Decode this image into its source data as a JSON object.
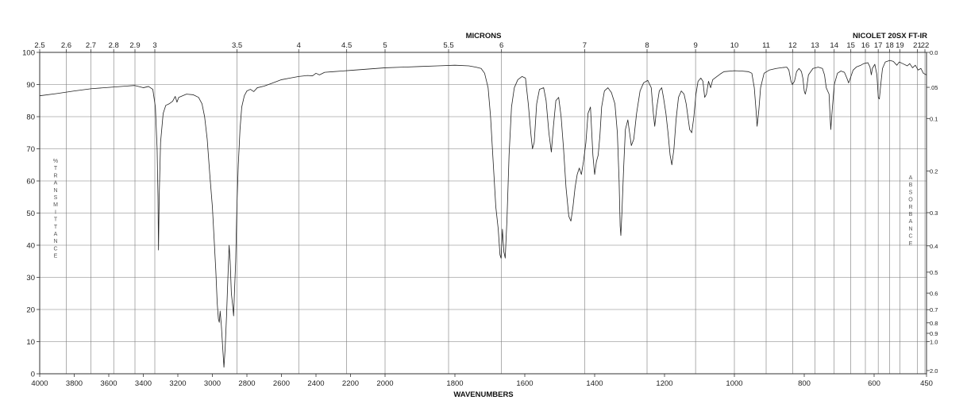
{
  "chart_data": {
    "type": "line",
    "instrument_label": "NICOLET 20SX FT-IR",
    "top_axis_title": "MICRONS",
    "bottom_axis_title": "WAVENUMBERS",
    "left_axis_vertical_label": "%TRANSMITTANCE",
    "right_axis_vertical_label": "ABSORBANCE",
    "xlim": [
      4000,
      450
    ],
    "ylim": [
      0,
      100
    ],
    "x_scale": "two linear segments: 4000-2000 cm-1 and 2000-450 cm-1 (expanded)",
    "grid": true,
    "bottom_ticks": [
      "4000",
      "3800",
      "3600",
      "3400",
      "3200",
      "3000",
      "2800",
      "2600",
      "2400",
      "2200",
      "2000",
      "1800",
      "1600",
      "1400",
      "1200",
      "1000",
      "800",
      "600",
      "450"
    ],
    "bottom_tick_values": [
      4000,
      3800,
      3600,
      3400,
      3200,
      3000,
      2800,
      2600,
      2400,
      2200,
      2000,
      1800,
      1600,
      1400,
      1200,
      1000,
      800,
      600,
      450
    ],
    "top_ticks": [
      "2.5",
      "2.6",
      "2.7",
      "2.8",
      "2.9",
      "3",
      "3.5",
      "4",
      "4.5",
      "5",
      "5.5",
      "6",
      "7",
      "8",
      "9",
      "10",
      "11",
      "12",
      "13",
      "14",
      "15",
      "16",
      "17",
      "18",
      "19",
      "21",
      "22"
    ],
    "top_tick_values": [
      2.5,
      2.6,
      2.7,
      2.8,
      2.9,
      3,
      3.5,
      4,
      4.5,
      5,
      5.5,
      6,
      7,
      8,
      9,
      10,
      11,
      12,
      13,
      14,
      15,
      16,
      17,
      18,
      19,
      21,
      22
    ],
    "left_ticks": [
      "0",
      "10",
      "20",
      "30",
      "40",
      "50",
      "60",
      "70",
      "80",
      "90",
      "100"
    ],
    "left_tick_values": [
      0,
      10,
      20,
      30,
      40,
      50,
      60,
      70,
      80,
      90,
      100
    ],
    "right_ticks": [
      "0.0",
      ".05",
      "0.1",
      "0.2",
      "0.3",
      "0.4",
      "0.5",
      "0.6",
      "0.7",
      "0.8",
      "0.9",
      "1.0",
      "2.0"
    ],
    "right_tick_values": [
      0,
      0.05,
      0.1,
      0.2,
      0.3,
      0.4,
      0.5,
      0.6,
      0.7,
      0.8,
      0.9,
      1.0,
      2.0
    ],
    "series": [
      {
        "points": [
          [
            4000,
            86.5
          ],
          [
            3900,
            87.2
          ],
          [
            3800,
            88.0
          ],
          [
            3700,
            88.7
          ],
          [
            3600,
            89.1
          ],
          [
            3500,
            89.5
          ],
          [
            3450,
            89.7
          ],
          [
            3420,
            89.3
          ],
          [
            3400,
            89.0
          ],
          [
            3370,
            89.4
          ],
          [
            3345,
            88.5
          ],
          [
            3330,
            83
          ],
          [
            3320,
            70
          ],
          [
            3315,
            55
          ],
          [
            3312,
            38.5
          ],
          [
            3308,
            55
          ],
          [
            3300,
            72
          ],
          [
            3285,
            81
          ],
          [
            3270,
            83.5
          ],
          [
            3250,
            84.0
          ],
          [
            3230,
            84.8
          ],
          [
            3215,
            86.3
          ],
          [
            3205,
            84.5
          ],
          [
            3195,
            86.0
          ],
          [
            3150,
            87.0
          ],
          [
            3110,
            86.8
          ],
          [
            3080,
            86.0
          ],
          [
            3060,
            84
          ],
          [
            3045,
            80
          ],
          [
            3030,
            73
          ],
          [
            3015,
            62
          ],
          [
            3000,
            52
          ],
          [
            2990,
            42
          ],
          [
            2980,
            32
          ],
          [
            2972,
            22
          ],
          [
            2965,
            17
          ],
          [
            2960,
            16
          ],
          [
            2955,
            19.5
          ],
          [
            2948,
            15
          ],
          [
            2940,
            8
          ],
          [
            2933,
            2
          ],
          [
            2926,
            8
          ],
          [
            2918,
            18
          ],
          [
            2910,
            30
          ],
          [
            2903,
            40
          ],
          [
            2897,
            35
          ],
          [
            2890,
            25
          ],
          [
            2882,
            21
          ],
          [
            2877,
            18
          ],
          [
            2873,
            24
          ],
          [
            2865,
            35
          ],
          [
            2858,
            52
          ],
          [
            2850,
            65
          ],
          [
            2840,
            76
          ],
          [
            2830,
            83
          ],
          [
            2815,
            86.5
          ],
          [
            2800,
            88
          ],
          [
            2780,
            88.5
          ],
          [
            2760,
            87.8
          ],
          [
            2740,
            89
          ],
          [
            2700,
            89.5
          ],
          [
            2650,
            90.5
          ],
          [
            2600,
            91.5
          ],
          [
            2550,
            92.0
          ],
          [
            2500,
            92.5
          ],
          [
            2450,
            92.8
          ],
          [
            2420,
            92.7
          ],
          [
            2400,
            93.5
          ],
          [
            2380,
            93.0
          ],
          [
            2350,
            93.8
          ],
          [
            2300,
            94.0
          ],
          [
            2250,
            94.2
          ],
          [
            2200,
            94.4
          ],
          [
            2100,
            94.8
          ],
          [
            2000,
            95.2
          ],
          [
            1950,
            95.4
          ],
          [
            1900,
            95.6
          ],
          [
            1850,
            95.8
          ],
          [
            1800,
            96.0
          ],
          [
            1760,
            95.8
          ],
          [
            1740,
            95.4
          ],
          [
            1725,
            95.0
          ],
          [
            1715,
            93.5
          ],
          [
            1705,
            89
          ],
          [
            1698,
            80
          ],
          [
            1690,
            65
          ],
          [
            1683,
            52
          ],
          [
            1676,
            45
          ],
          [
            1671,
            37
          ],
          [
            1668,
            36
          ],
          [
            1664,
            45
          ],
          [
            1660,
            38
          ],
          [
            1656,
            36
          ],
          [
            1651,
            48
          ],
          [
            1645,
            68
          ],
          [
            1638,
            83
          ],
          [
            1630,
            89
          ],
          [
            1620,
            91.5
          ],
          [
            1608,
            92.5
          ],
          [
            1598,
            92
          ],
          [
            1590,
            84
          ],
          [
            1582,
            74
          ],
          [
            1578,
            70
          ],
          [
            1573,
            72
          ],
          [
            1566,
            84
          ],
          [
            1558,
            88.5
          ],
          [
            1546,
            89
          ],
          [
            1539,
            85
          ],
          [
            1531,
            75
          ],
          [
            1524,
            69
          ],
          [
            1518,
            77
          ],
          [
            1511,
            85
          ],
          [
            1503,
            86
          ],
          [
            1496,
            80
          ],
          [
            1489,
            70
          ],
          [
            1482,
            58
          ],
          [
            1474,
            49
          ],
          [
            1468,
            47.5
          ],
          [
            1462,
            52
          ],
          [
            1456,
            58
          ],
          [
            1450,
            62
          ],
          [
            1444,
            64
          ],
          [
            1438,
            62
          ],
          [
            1432,
            66
          ],
          [
            1425,
            72
          ],
          [
            1419,
            81
          ],
          [
            1412,
            83
          ],
          [
            1405,
            68
          ],
          [
            1400,
            62
          ],
          [
            1395,
            66
          ],
          [
            1390,
            68
          ],
          [
            1385,
            74
          ],
          [
            1380,
            83
          ],
          [
            1372,
            88
          ],
          [
            1362,
            89
          ],
          [
            1352,
            87.5
          ],
          [
            1342,
            84
          ],
          [
            1335,
            75
          ],
          [
            1330,
            60
          ],
          [
            1327,
            46
          ],
          [
            1325,
            43
          ],
          [
            1322,
            50
          ],
          [
            1317,
            64
          ],
          [
            1312,
            76
          ],
          [
            1305,
            79
          ],
          [
            1300,
            75
          ],
          [
            1295,
            71
          ],
          [
            1288,
            73
          ],
          [
            1280,
            81
          ],
          [
            1270,
            88
          ],
          [
            1260,
            90.5
          ],
          [
            1248,
            91.3
          ],
          [
            1238,
            89
          ],
          [
            1232,
            81
          ],
          [
            1228,
            77
          ],
          [
            1222,
            83
          ],
          [
            1215,
            88
          ],
          [
            1208,
            89
          ],
          [
            1203,
            86
          ],
          [
            1196,
            81
          ],
          [
            1190,
            75
          ],
          [
            1184,
            68
          ],
          [
            1179,
            65
          ],
          [
            1173,
            70
          ],
          [
            1167,
            79
          ],
          [
            1160,
            86
          ],
          [
            1152,
            88
          ],
          [
            1144,
            87
          ],
          [
            1138,
            84
          ],
          [
            1133,
            80
          ],
          [
            1128,
            76
          ],
          [
            1122,
            75
          ],
          [
            1116,
            80
          ],
          [
            1110,
            87
          ],
          [
            1104,
            91
          ],
          [
            1096,
            92
          ],
          [
            1090,
            91
          ],
          [
            1085,
            86
          ],
          [
            1080,
            87
          ],
          [
            1074,
            91
          ],
          [
            1068,
            89
          ],
          [
            1062,
            91.5
          ],
          [
            1050,
            92.5
          ],
          [
            1040,
            93.3
          ],
          [
            1030,
            94.0
          ],
          [
            1000,
            94.3
          ],
          [
            980,
            94.2
          ],
          [
            960,
            94.0
          ],
          [
            950,
            93.5
          ],
          [
            943,
            89
          ],
          [
            938,
            82
          ],
          [
            935,
            77
          ],
          [
            930,
            82
          ],
          [
            925,
            89
          ],
          [
            915,
            93.5
          ],
          [
            900,
            94.5
          ],
          [
            880,
            95.0
          ],
          [
            860,
            95.3
          ],
          [
            850,
            95.4
          ],
          [
            844,
            94.5
          ],
          [
            838,
            91
          ],
          [
            834,
            90
          ],
          [
            828,
            91
          ],
          [
            822,
            94
          ],
          [
            815,
            95
          ],
          [
            808,
            94
          ],
          [
            804,
            92
          ],
          [
            800,
            88
          ],
          [
            797,
            87
          ],
          [
            793,
            89
          ],
          [
            788,
            93
          ],
          [
            775,
            95
          ],
          [
            760,
            95.4
          ],
          [
            748,
            95
          ],
          [
            742,
            93
          ],
          [
            737,
            89
          ],
          [
            733,
            88
          ],
          [
            729,
            87
          ],
          [
            726,
            80
          ],
          [
            724,
            76
          ],
          [
            720,
            82
          ],
          [
            714,
            90
          ],
          [
            705,
            93.5
          ],
          [
            695,
            94.2
          ],
          [
            685,
            93.8
          ],
          [
            678,
            92
          ],
          [
            673,
            90.5
          ],
          [
            668,
            92
          ],
          [
            660,
            94.5
          ],
          [
            650,
            95.5
          ],
          [
            638,
            96.0
          ],
          [
            630,
            96.5
          ],
          [
            618,
            96.8
          ],
          [
            612,
            95.5
          ],
          [
            608,
            93
          ],
          [
            605,
            95
          ],
          [
            598,
            96.3
          ],
          [
            592,
            93
          ],
          [
            588,
            86
          ],
          [
            585,
            85.5
          ],
          [
            581,
            90
          ],
          [
            576,
            95
          ],
          [
            568,
            97.0
          ],
          [
            555,
            97.5
          ],
          [
            545,
            97.2
          ],
          [
            535,
            96.0
          ],
          [
            528,
            97.0
          ],
          [
            518,
            96.5
          ],
          [
            505,
            95.8
          ],
          [
            498,
            96.5
          ],
          [
            490,
            95.2
          ],
          [
            482,
            96.0
          ],
          [
            474,
            94.5
          ],
          [
            466,
            95.0
          ],
          [
            459,
            93.5
          ],
          [
            454,
            93.2
          ],
          [
            450,
            93.0
          ]
        ]
      }
    ]
  }
}
